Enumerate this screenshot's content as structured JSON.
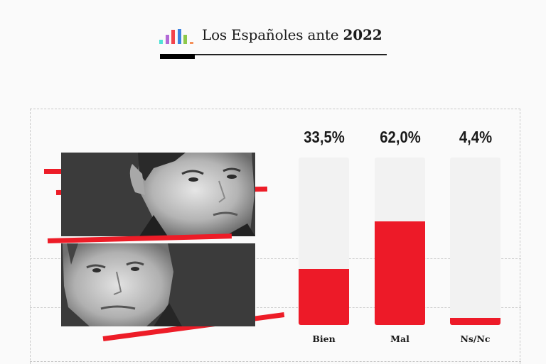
{
  "header": {
    "title_regular": "Los Españoles ante ",
    "title_bold": "2022",
    "logo_icon": "bar-chart-logo-icon",
    "logo_colors": [
      "#4fe3d6",
      "#b269d6",
      "#f2434b",
      "#3a82e0",
      "#8cc84b",
      "#f4905a"
    ]
  },
  "photos": [
    {
      "name": "politician-photo-top",
      "description": "Black and white portrait of a man with dark hair"
    },
    {
      "name": "politician-photo-bottom",
      "description": "Black and white portrait of a man looking upward"
    }
  ],
  "colors": {
    "accent": "#ed1a28",
    "track": "#f2f2f2",
    "background": "#fafafa"
  },
  "chart_data": {
    "type": "bar",
    "title": "Los Españoles ante 2022",
    "categories": [
      "Bien",
      "Mal",
      "Ns/Nc"
    ],
    "values": [
      33.5,
      62.0,
      4.4
    ],
    "value_labels": [
      "33,5%",
      "62,0%",
      "4,4%"
    ],
    "ylim": [
      0,
      100
    ],
    "unit": "%",
    "xlabel": "",
    "ylabel": "",
    "grid": false,
    "legend": "none"
  }
}
